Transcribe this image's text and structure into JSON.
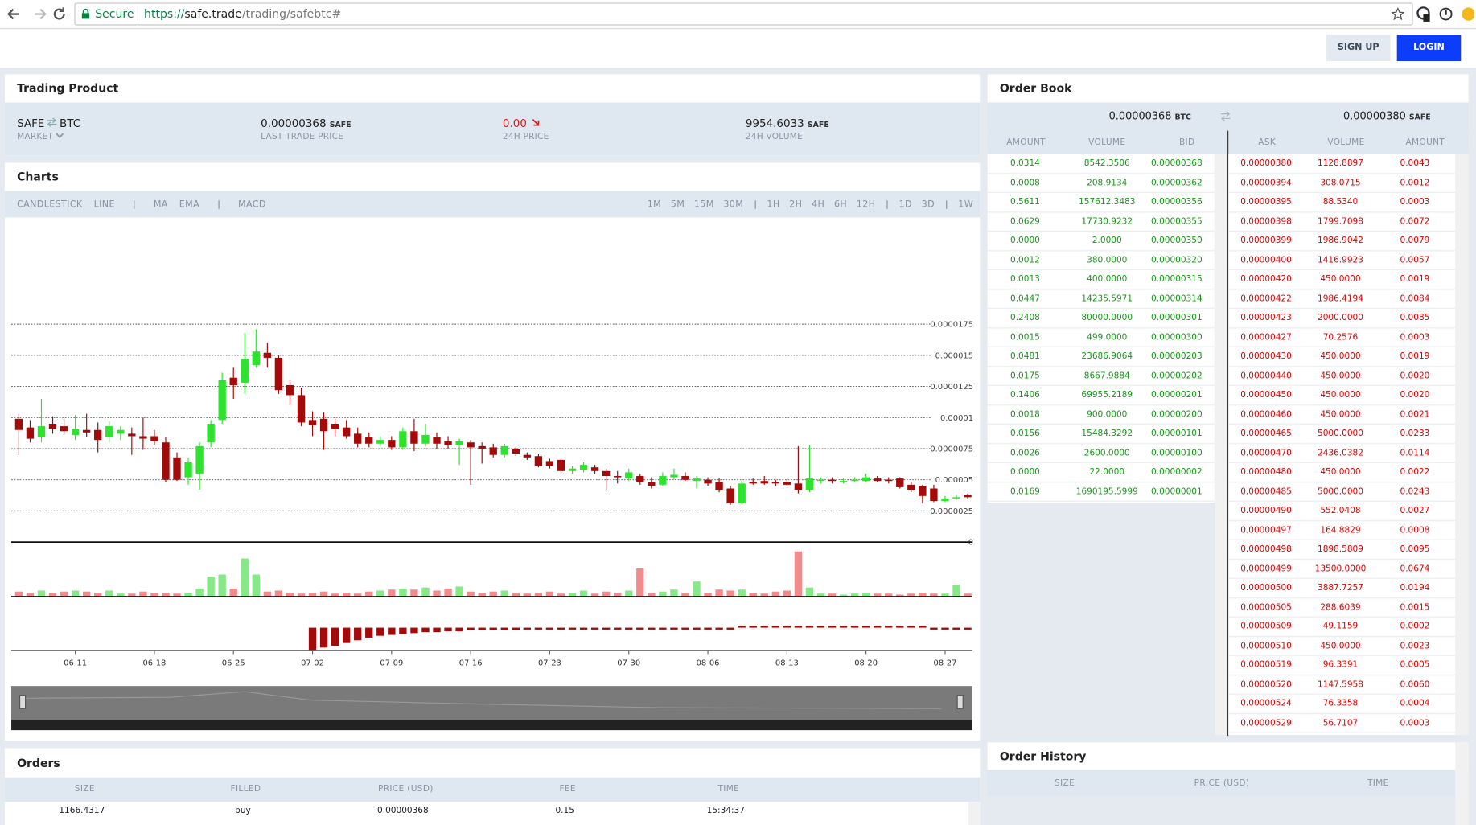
{
  "browser": {
    "secure": "Secure",
    "scheme": "https://",
    "host": "safe.trade",
    "path": "/trading/safebtc#"
  },
  "nav": {
    "signup": "SIGN UP",
    "login": "LOGIN"
  },
  "product": {
    "title": "Trading Product",
    "base": "SAFE",
    "quote": "BTC",
    "market": "MARKET",
    "last_price": "0.00000368",
    "last_unit": "SAFE",
    "last_label": "LAST TRADE PRICE",
    "change": "0.00",
    "change_label": "24H PRICE",
    "volume": "9954.6033",
    "volume_unit": "SAFE",
    "volume_label": "24H VOLUME"
  },
  "charts": {
    "title": "Charts",
    "tool_groups": [
      [
        "CANDLESTICK",
        "LINE"
      ],
      [
        "MA",
        "EMA"
      ],
      [
        "MACD"
      ]
    ],
    "interval_groups": [
      [
        "1M",
        "5M",
        "15M",
        "30M"
      ],
      [
        "1H",
        "2H",
        "4H",
        "6H",
        "12H"
      ],
      [
        "1D",
        "3D"
      ],
      [
        "1W"
      ]
    ],
    "chart_data": {
      "type": "candlestick",
      "up_color": "#2ee32e",
      "down_color": "#a30a0a",
      "volume_up_color": "#86e886",
      "volume_down_color": "#f28c8c",
      "ylim": [
        0,
        2.57e-05
      ],
      "yticks": [
        0,
        2.5e-06,
        5e-06,
        7.5e-06,
        1e-05,
        1.25e-05,
        1.5e-05,
        1.75e-05
      ],
      "categories": [
        null,
        null,
        null,
        null,
        null,
        "06-11",
        null,
        null,
        null,
        null,
        null,
        null,
        "06-18",
        null,
        null,
        null,
        null,
        null,
        null,
        "06-25",
        null,
        null,
        null,
        null,
        null,
        null,
        "07-02",
        null,
        null,
        null,
        null,
        null,
        null,
        "07-09",
        null,
        null,
        null,
        null,
        null,
        null,
        "07-16",
        null,
        null,
        null,
        null,
        null,
        null,
        "07-23",
        null,
        null,
        null,
        null,
        null,
        null,
        "07-30",
        null,
        null,
        null,
        null,
        null,
        null,
        "08-06",
        null,
        null,
        null,
        null,
        null,
        null,
        "08-13",
        null,
        null,
        null,
        null,
        null,
        null,
        "08-20",
        null,
        null,
        null,
        null,
        null,
        null,
        "08-27",
        null,
        null
      ],
      "open": [
        9.9e-06,
        9.2e-06,
        8.4e-06,
        9.5e-06,
        9.3e-06,
        8.6e-06,
        9e-06,
        9e-06,
        8.4e-06,
        8.7e-06,
        8.7e-06,
        8.5e-06,
        8.5e-06,
        8e-06,
        6.8e-06,
        5.2e-06,
        5.5e-06,
        8e-06,
        9.8e-06,
        1.32e-05,
        1.28e-05,
        1.42e-05,
        1.52e-05,
        1.48e-05,
        1.26e-05,
        1.18e-05,
        9.8e-06,
        9.9e-06,
        9.5e-06,
        9.2e-06,
        8.7e-06,
        8.4e-06,
        7.9e-06,
        8.2e-06,
        7.6e-06,
        8.9e-06,
        7.9e-06,
        8.4e-06,
        8.1e-06,
        7.8e-06,
        8e-06,
        7.7e-06,
        7.6e-06,
        7e-06,
        7.5e-06,
        7e-06,
        6.9e-06,
        6.5e-06,
        6.6e-06,
        5.7e-06,
        5.8e-06,
        6e-06,
        5.7e-06,
        5.3e-06,
        5.1e-06,
        5.3e-06,
        4.8e-06,
        4.6e-06,
        5.2e-06,
        5.3e-06,
        4.9e-06,
        5e-06,
        4.8e-06,
        4.3e-06,
        3.1e-06,
        4.8e-06,
        4.9e-06,
        4.8e-06,
        4.8e-06,
        4.7e-06,
        4.2e-06,
        4.9e-06,
        5e-06,
        4.8e-06,
        4.9e-06,
        4.9e-06,
        5.1e-06,
        5e-06,
        5.1e-06,
        4.6e-06,
        4.5e-06,
        4.3e-06,
        3.3e-06,
        3.5e-06,
        3.8e-06
      ],
      "high": [
        1.03e-05,
        9.8e-06,
        1.15e-05,
        1.01e-05,
        9.9e-06,
        1.02e-05,
        1.03e-05,
        9.6e-06,
        9.7e-06,
        9.3e-06,
        9.2e-06,
        1e-05,
        9e-06,
        8.4e-06,
        7.2e-06,
        6.8e-06,
        8e-06,
        9.8e-06,
        1.36e-05,
        1.4e-05,
        1.68e-05,
        1.71e-05,
        1.6e-05,
        1.5e-05,
        1.3e-05,
        1.24e-05,
        1.05e-05,
        1.04e-05,
        9.9e-06,
        9.8e-06,
        9.2e-06,
        8.8e-06,
        8.5e-06,
        8.5e-06,
        9.2e-06,
        9.9e-06,
        9.5e-06,
        8.8e-06,
        8.5e-06,
        8.3e-06,
        8.2e-06,
        8e-06,
        7.9e-06,
        7.9e-06,
        7.6e-06,
        7.2e-06,
        7.1e-06,
        6.7e-06,
        6.8e-06,
        6.1e-06,
        6.4e-06,
        6.2e-06,
        5.9e-06,
        5.7e-06,
        5.9e-06,
        5.5e-06,
        5.2e-06,
        5.6e-06,
        5.9e-06,
        5.6e-06,
        5.3e-06,
        5.2e-06,
        5.1e-06,
        4.5e-06,
        4.9e-06,
        5.1e-06,
        5.3e-06,
        5e-06,
        5e-06,
        7.7e-06,
        7.8e-06,
        5.2e-06,
        5.2e-06,
        5.1e-06,
        5.2e-06,
        5.5e-06,
        5.3e-06,
        5.2e-06,
        5.2e-06,
        4.8e-06,
        4.6e-06,
        4.6e-06,
        3.7e-06,
        3.8e-06,
        3.9e-06
      ],
      "low": [
        7e-06,
        8e-06,
        8e-06,
        8.7e-06,
        8.6e-06,
        8.2e-06,
        8.4e-06,
        7.2e-06,
        8e-06,
        8.2e-06,
        7e-06,
        7.4e-06,
        7.8e-06,
        4.8e-06,
        4.9e-06,
        4.6e-06,
        4.2e-06,
        7.6e-06,
        9.5e-06,
        1.15e-05,
        1.19e-05,
        1.4e-05,
        1.4e-05,
        1.19e-05,
        1.1e-05,
        9.3e-06,
        8.5e-06,
        7.4e-06,
        8.5e-06,
        8.3e-06,
        7.6e-06,
        7.6e-06,
        7.7e-06,
        7.4e-06,
        7.4e-06,
        7.3e-06,
        7.7e-06,
        7.5e-06,
        7.5e-06,
        6.2e-06,
        4.6e-06,
        6.3e-06,
        6.8e-06,
        6.8e-06,
        6.9e-06,
        6.6e-06,
        6e-06,
        5.9e-06,
        5.5e-06,
        5.5e-06,
        5.6e-06,
        5.5e-06,
        4.2e-06,
        4.7e-06,
        4.9e-06,
        4.6e-06,
        4.3e-06,
        4.5e-06,
        5e-06,
        4.9e-06,
        4.3e-06,
        4.5e-06,
        4e-06,
        3e-06,
        3e-06,
        4.6e-06,
        4.6e-06,
        4.5e-06,
        4.5e-06,
        3.9e-06,
        4e-06,
        4.7e-06,
        4.7e-06,
        4.7e-06,
        4.8e-06,
        4.8e-06,
        4.8e-06,
        4.7e-06,
        4.3e-06,
        4e-06,
        3.1e-06,
        3.2e-06,
        3.2e-06,
        3.4e-06,
        3.5e-06
      ],
      "close": [
        9e-06,
        8.3e-06,
        9.3e-06,
        9.1e-06,
        8.9e-06,
        9.1e-06,
        8.8e-06,
        8.2e-06,
        9.3e-06,
        9e-06,
        8.5e-06,
        8.3e-06,
        8.1e-06,
        5e-06,
        5e-06,
        6.4e-06,
        7.7e-06,
        9.5e-06,
        1.3e-05,
        1.26e-05,
        1.47e-05,
        1.53e-05,
        1.48e-05,
        1.22e-05,
        1.18e-05,
        9.6e-06,
        9.4e-06,
        8.9e-06,
        9.1e-06,
        8.5e-06,
        7.9e-06,
        7.9e-06,
        8.2e-06,
        7.6e-06,
        8.9e-06,
        7.9e-06,
        8.6e-06,
        7.9e-06,
        7.8e-06,
        8.1e-06,
        7.6e-06,
        7.5e-06,
        7e-06,
        7.7e-06,
        7.1e-06,
        6.8e-06,
        6.1e-06,
        6.1e-06,
        5.7e-06,
        5.9e-06,
        6.2e-06,
        5.7e-06,
        5.3e-06,
        5.2e-06,
        5.6e-06,
        4.8e-06,
        4.5e-06,
        5.3e-06,
        5.4e-06,
        5e-06,
        5.1e-06,
        4.7e-06,
        4.2e-06,
        3.1e-06,
        4.7e-06,
        4.7e-06,
        4.7e-06,
        4.7e-06,
        4.6e-06,
        4.2e-06,
        5.1e-06,
        5e-06,
        4.9e-06,
        4.9e-06,
        5e-06,
        5.2e-06,
        4.9e-06,
        4.9e-06,
        4.4e-06,
        4.2e-06,
        3.7e-06,
        3.3e-06,
        3.5e-06,
        3.6e-06,
        3.6e-06
      ],
      "volume": [
        5,
        4,
        6,
        4,
        5,
        6,
        5,
        4,
        6,
        3,
        3,
        5,
        4,
        4,
        3,
        4,
        8,
        20,
        22,
        8,
        38,
        22,
        5,
        6,
        4,
        3,
        4,
        5,
        3,
        4,
        3,
        5,
        6,
        7,
        8,
        7,
        9,
        6,
        8,
        10,
        5,
        4,
        5,
        6,
        4,
        3,
        4,
        5,
        3,
        4,
        6,
        3,
        5,
        4,
        6,
        28,
        4,
        5,
        7,
        4,
        15,
        4,
        7,
        6,
        7,
        4,
        3,
        5,
        6,
        45,
        9,
        3,
        3,
        2,
        3,
        4,
        3,
        3,
        2,
        3,
        4,
        3,
        3,
        12,
        3
      ],
      "macd": [
        null,
        null,
        null,
        null,
        null,
        null,
        null,
        null,
        null,
        null,
        null,
        null,
        null,
        null,
        null,
        null,
        null,
        null,
        null,
        null,
        null,
        null,
        null,
        null,
        null,
        null,
        -25,
        -22,
        -20,
        -17,
        -14,
        -11,
        -9,
        -8,
        -7,
        -6,
        -5,
        -5,
        -4,
        -4,
        -3,
        -3,
        -3,
        -3,
        -3,
        -2,
        -2,
        -2,
        -2,
        -2,
        -1,
        -1,
        -1,
        -1,
        -1,
        -1,
        -1,
        -1,
        -1,
        -1,
        -1,
        -1,
        -1,
        -1,
        1,
        1,
        1,
        1,
        1,
        1,
        1,
        1,
        1,
        1,
        1,
        1,
        1,
        1,
        1,
        1,
        1,
        -1,
        -1,
        -1,
        -1
      ]
    }
  },
  "order_book": {
    "title": "Order Book",
    "bid_price": "0.00000368",
    "bid_unit": "BTC",
    "ask_price": "0.00000380",
    "ask_unit": "SAFE",
    "bid_columns": [
      "AMOUNT",
      "VOLUME",
      "BID"
    ],
    "ask_columns": [
      "ASK",
      "VOLUME",
      "AMOUNT"
    ],
    "bids": [
      [
        "0.0314",
        "8542.3506",
        "0.00000368"
      ],
      [
        "0.0008",
        "208.9134",
        "0.00000362"
      ],
      [
        "0.5611",
        "157612.3483",
        "0.00000356"
      ],
      [
        "0.0629",
        "17730.9232",
        "0.00000355"
      ],
      [
        "0.0000",
        "2.0000",
        "0.00000350"
      ],
      [
        "0.0012",
        "380.0000",
        "0.00000320"
      ],
      [
        "0.0013",
        "400.0000",
        "0.00000315"
      ],
      [
        "0.0447",
        "14235.5971",
        "0.00000314"
      ],
      [
        "0.2408",
        "80000.0000",
        "0.00000301"
      ],
      [
        "0.0015",
        "499.0000",
        "0.00000300"
      ],
      [
        "0.0481",
        "23686.9064",
        "0.00000203"
      ],
      [
        "0.0175",
        "8667.9884",
        "0.00000202"
      ],
      [
        "0.1406",
        "69955.2189",
        "0.00000201"
      ],
      [
        "0.0018",
        "900.0000",
        "0.00000200"
      ],
      [
        "0.0156",
        "15484.3292",
        "0.00000101"
      ],
      [
        "0.0026",
        "2600.0000",
        "0.00000100"
      ],
      [
        "0.0000",
        "22.0000",
        "0.00000002"
      ],
      [
        "0.0169",
        "1690195.5999",
        "0.00000001"
      ]
    ],
    "asks": [
      [
        "0.00000380",
        "1128.8897",
        "0.0043"
      ],
      [
        "0.00000394",
        "308.0715",
        "0.0012"
      ],
      [
        "0.00000395",
        "88.5340",
        "0.0003"
      ],
      [
        "0.00000398",
        "1799.7098",
        "0.0072"
      ],
      [
        "0.00000399",
        "1986.9042",
        "0.0079"
      ],
      [
        "0.00000400",
        "1416.9923",
        "0.0057"
      ],
      [
        "0.00000420",
        "450.0000",
        "0.0019"
      ],
      [
        "0.00000422",
        "1986.4194",
        "0.0084"
      ],
      [
        "0.00000423",
        "2000.0000",
        "0.0085"
      ],
      [
        "0.00000427",
        "70.2576",
        "0.0003"
      ],
      [
        "0.00000430",
        "450.0000",
        "0.0019"
      ],
      [
        "0.00000440",
        "450.0000",
        "0.0020"
      ],
      [
        "0.00000450",
        "450.0000",
        "0.0020"
      ],
      [
        "0.00000460",
        "450.0000",
        "0.0021"
      ],
      [
        "0.00000465",
        "5000.0000",
        "0.0233"
      ],
      [
        "0.00000470",
        "2436.0382",
        "0.0114"
      ],
      [
        "0.00000480",
        "450.0000",
        "0.0022"
      ],
      [
        "0.00000485",
        "5000.0000",
        "0.0243"
      ],
      [
        "0.00000490",
        "552.0408",
        "0.0027"
      ],
      [
        "0.00000497",
        "164.8829",
        "0.0008"
      ],
      [
        "0.00000498",
        "1898.5809",
        "0.0095"
      ],
      [
        "0.00000499",
        "13500.0000",
        "0.0674"
      ],
      [
        "0.00000500",
        "3887.7257",
        "0.0194"
      ],
      [
        "0.00000505",
        "288.6039",
        "0.0015"
      ],
      [
        "0.00000509",
        "49.1159",
        "0.0002"
      ],
      [
        "0.00000510",
        "450.0000",
        "0.0023"
      ],
      [
        "0.00000519",
        "96.3391",
        "0.0005"
      ],
      [
        "0.00000520",
        "1147.5958",
        "0.0060"
      ],
      [
        "0.00000524",
        "76.3358",
        "0.0004"
      ],
      [
        "0.00000529",
        "56.7107",
        "0.0003"
      ]
    ]
  },
  "orders": {
    "title": "Orders",
    "columns": [
      "SIZE",
      "FILLED",
      "PRICE (USD)",
      "FEE",
      "TIME"
    ],
    "rows": [
      [
        "1166.4317",
        "buy",
        "0.00000368",
        "0.15",
        "15:34:37"
      ]
    ]
  },
  "order_history": {
    "title": "Order History",
    "columns": [
      "SIZE",
      "PRICE (USD)",
      "TIME"
    ]
  }
}
